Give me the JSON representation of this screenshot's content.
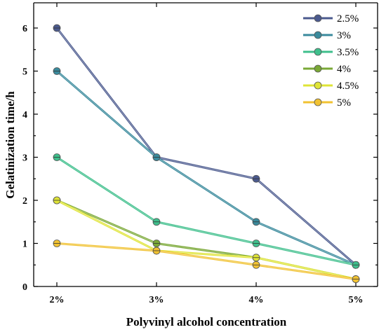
{
  "chart_data": {
    "type": "line",
    "xlabel": "Polyvinyl alcohol concentration",
    "ylabel": "Gelatinization time/h",
    "categories": [
      "2%",
      "3%",
      "4%",
      "5%"
    ],
    "ylim": [
      0,
      6.5
    ],
    "yticks": [
      0,
      1,
      2,
      3,
      4,
      5,
      6
    ],
    "grid": false,
    "legend_position": "top-right",
    "series": [
      {
        "name": "2.5%",
        "color": "#4b5a8e",
        "values": [
          6.0,
          3.0,
          2.5,
          0.5
        ]
      },
      {
        "name": "3%",
        "color": "#3a8a9c",
        "values": [
          5.0,
          3.0,
          1.5,
          0.5
        ]
      },
      {
        "name": "3.5%",
        "color": "#3fbf8c",
        "values": [
          3.0,
          1.5,
          1.0,
          0.5
        ]
      },
      {
        "name": "4%",
        "color": "#7aa836",
        "values": [
          2.0,
          1.0,
          0.67,
          0.17
        ]
      },
      {
        "name": "4.5%",
        "color": "#dfe437",
        "values": [
          2.0,
          0.83,
          0.67,
          0.17
        ]
      },
      {
        "name": "5%",
        "color": "#f1c232",
        "values": [
          1.0,
          0.83,
          0.5,
          0.17
        ]
      }
    ]
  }
}
